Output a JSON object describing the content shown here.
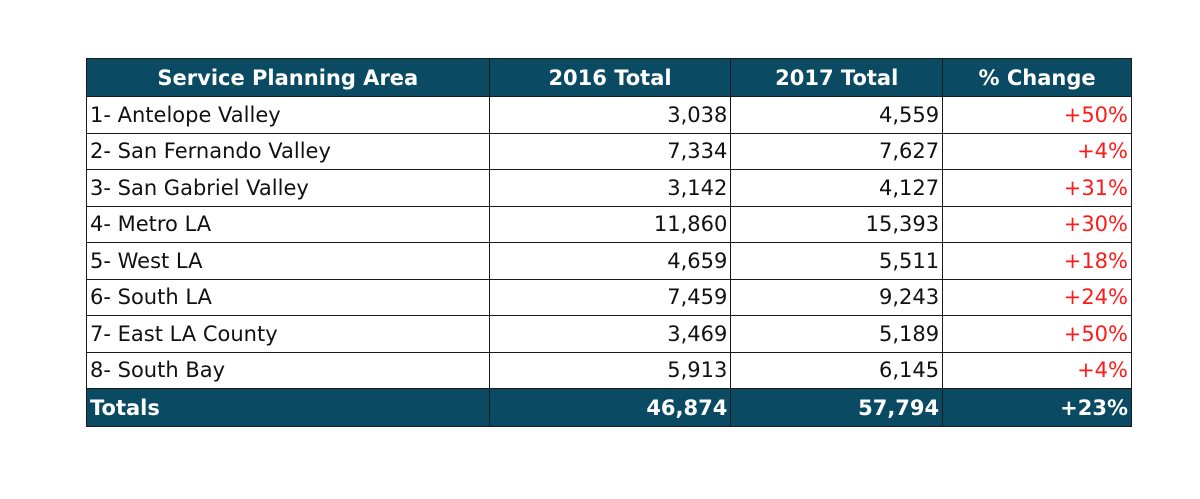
{
  "table": {
    "headers": [
      "Service Planning Area",
      "2016 Total",
      "2017 Total",
      "% Change"
    ],
    "rows": [
      {
        "area": "1- Antelope Valley",
        "y2016": "3,038",
        "y2017": "4,559",
        "change": "+50%"
      },
      {
        "area": "2- San Fernando Valley",
        "y2016": "7,334",
        "y2017": "7,627",
        "change": "+4%"
      },
      {
        "area": "3- San Gabriel Valley",
        "y2016": "3,142",
        "y2017": "4,127",
        "change": "+31%"
      },
      {
        "area": "4- Metro LA",
        "y2016": "11,860",
        "y2017": "15,393",
        "change": "+30%"
      },
      {
        "area": "5- West LA",
        "y2016": "4,659",
        "y2017": "5,511",
        "change": "+18%"
      },
      {
        "area": "6- South LA",
        "y2016": "7,459",
        "y2017": "9,243",
        "change": "+24%"
      },
      {
        "area": "7- East LA County",
        "y2016": "3,469",
        "y2017": "5,189",
        "change": "+50%"
      },
      {
        "area": "8- South Bay",
        "y2016": "5,913",
        "y2017": "6,145",
        "change": "+4%"
      }
    ],
    "totals": {
      "label": "Totals",
      "y2016": "46,874",
      "y2017": "57,794",
      "change": "+23%"
    }
  },
  "colors": {
    "header_bg": "#0b4a63",
    "header_text": "#ffffff",
    "change_text": "#ff1a1a"
  }
}
